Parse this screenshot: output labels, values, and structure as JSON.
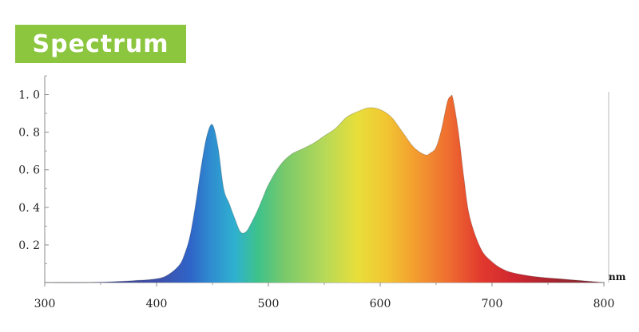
{
  "header": {
    "title": "Spectrum"
  },
  "chart_data": {
    "type": "area",
    "title": "",
    "xlabel": "nm",
    "ylabel": "",
    "xlim": [
      300,
      800
    ],
    "ylim": [
      0,
      1.1
    ],
    "x_ticks": [
      300,
      400,
      500,
      600,
      700,
      800
    ],
    "x_tick_labels": [
      "300",
      "400",
      "500",
      "600",
      "700",
      "800"
    ],
    "y_ticks": [
      0.2,
      0.4,
      0.6,
      0.8,
      1.0
    ],
    "y_tick_labels": [
      "0. 2",
      "0. 4",
      "0. 6",
      "0. 8",
      "1. 0"
    ],
    "grid": false,
    "legend": "none",
    "fill": "wavelength-color gradient",
    "series": [
      {
        "x": [
          300,
          340,
          380,
          400,
          410,
          420,
          425,
          430,
          435,
          440,
          445,
          450,
          455,
          460,
          465,
          470,
          475,
          480,
          485,
          490,
          495,
          500,
          510,
          520,
          530,
          540,
          550,
          560,
          570,
          580,
          590,
          600,
          610,
          620,
          630,
          640,
          645,
          650,
          655,
          660,
          663,
          665,
          670,
          675,
          680,
          690,
          700,
          710,
          720,
          740,
          760,
          780,
          800
        ],
        "values": [
          0.0,
          0.0,
          0.01,
          0.02,
          0.04,
          0.09,
          0.15,
          0.25,
          0.42,
          0.62,
          0.78,
          0.84,
          0.72,
          0.5,
          0.42,
          0.34,
          0.27,
          0.27,
          0.32,
          0.38,
          0.45,
          0.52,
          0.62,
          0.68,
          0.71,
          0.74,
          0.78,
          0.82,
          0.88,
          0.91,
          0.93,
          0.92,
          0.88,
          0.8,
          0.72,
          0.68,
          0.69,
          0.72,
          0.82,
          0.96,
          0.99,
          0.98,
          0.8,
          0.55,
          0.35,
          0.18,
          0.11,
          0.07,
          0.05,
          0.03,
          0.02,
          0.01,
          0.0
        ]
      }
    ]
  }
}
